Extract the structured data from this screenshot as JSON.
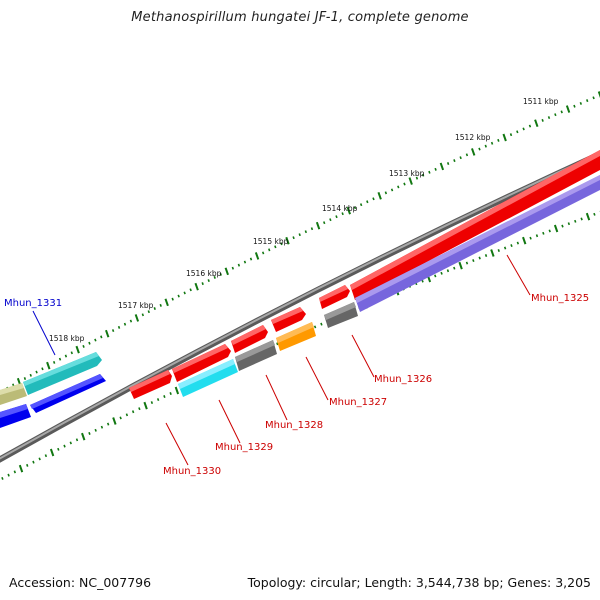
{
  "title": "Methanospirillum hungatei JF-1, complete genome",
  "footer": {
    "accession": "Accession: NC_007796",
    "topology": "Topology: circular; Length: 3,544,738 bp; Genes: 3,205"
  },
  "ruler_labels": [
    "1511 kbp",
    "1512 kbp",
    "1513 kbp",
    "1514 kbp",
    "1515 kbp",
    "1516 kbp",
    "1517 kbp",
    "1518 kbp"
  ],
  "gene_labels": {
    "mhun_1325": "Mhun_1325",
    "mhun_1326": "Mhun_1326",
    "mhun_1327": "Mhun_1327",
    "mhun_1328": "Mhun_1328",
    "mhun_1329": "Mhun_1329",
    "mhun_1330": "Mhun_1330",
    "mhun_1331": "Mhun_1331"
  },
  "colors": {
    "red": "#ee0000",
    "blue": "#0000ee",
    "purple": "#7766dd",
    "grey": "#666666",
    "cyan": "#22ddee",
    "teal": "#22bbbb",
    "orange": "#ff9900",
    "olive": "#bbbb77",
    "backbone": "#888888",
    "tick": "#117711",
    "label_red": "#cc0000",
    "label_blue": "#0000cc"
  }
}
